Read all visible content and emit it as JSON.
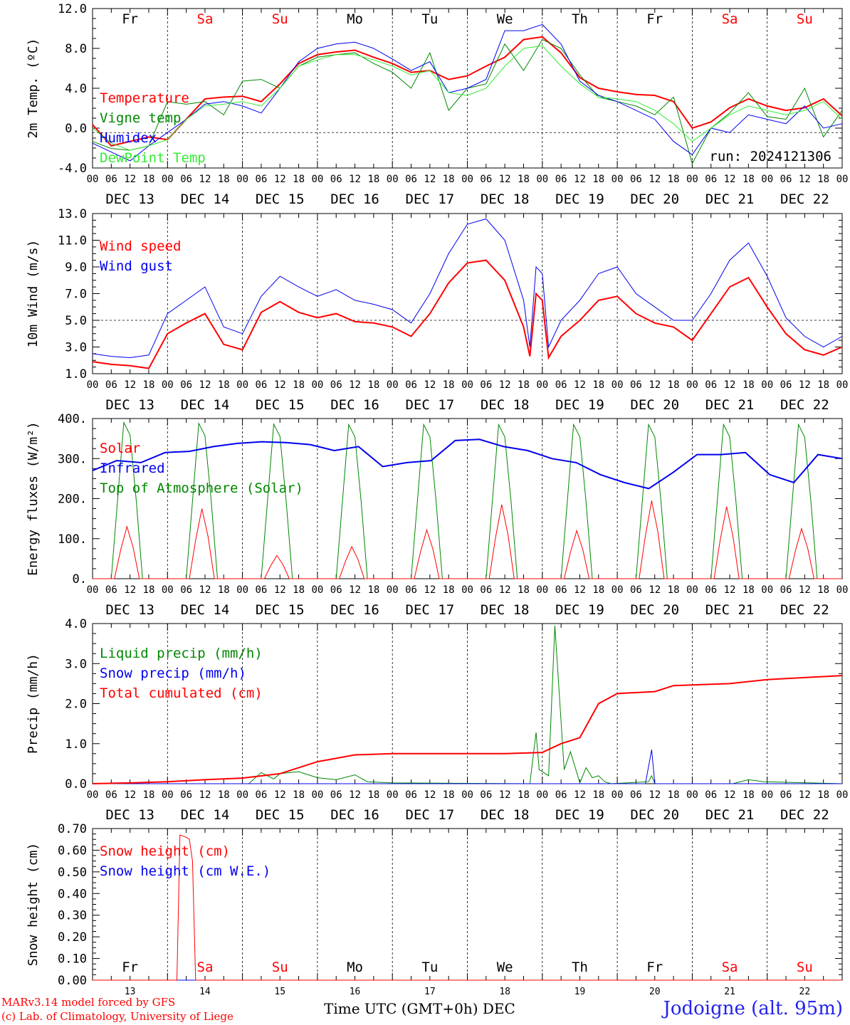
{
  "footer": {
    "credit_line1": "MARv3.14 model forced by GFS",
    "credit_line2": "(c) Lab. of Climatology, University of Liege",
    "x_axis_title": "Time UTC (GMT+0h) DEC",
    "station": "Jodoigne (alt. 95m)"
  },
  "time_axis": {
    "hour_ticks": [
      "00",
      "06",
      "12",
      "18"
    ],
    "final_tick": "00",
    "dates": [
      "DEC 13",
      "DEC 14",
      "DEC 15",
      "DEC 16",
      "DEC 17",
      "DEC 18",
      "DEC 19",
      "DEC 20",
      "DEC 21",
      "DEC 22"
    ],
    "weekdays": [
      "Fr",
      "Sa",
      "Su",
      "Mo",
      "Tu",
      "We",
      "Th",
      "Fr",
      "Sa",
      "Su"
    ],
    "weekday_colors": [
      "#000000",
      "#ff0000",
      "#ff0000",
      "#000000",
      "#000000",
      "#000000",
      "#000000",
      "#000000",
      "#ff0000",
      "#ff0000"
    ],
    "day_numbers": [
      "13",
      "14",
      "15",
      "16",
      "17",
      "18",
      "19",
      "20",
      "21",
      "22"
    ]
  },
  "chart_data": [
    {
      "type": "line",
      "ylabel": "2m Temp. (ºC)",
      "ylim": [
        -4,
        14
      ],
      "yticks": [
        "-4.0",
        "0.0",
        "4.0",
        "8.0",
        "12.0"
      ],
      "reference_line": 0,
      "note": "run: 2024121306",
      "weekday_labels_top": true,
      "x_hours": [
        0,
        6,
        12,
        18,
        24,
        30,
        36,
        42,
        48,
        54,
        60,
        66,
        72,
        78,
        84,
        90,
        96,
        102,
        108,
        114,
        120,
        126,
        132,
        138,
        144,
        150,
        156,
        162,
        168,
        174,
        180,
        186,
        192,
        198,
        204,
        210,
        216,
        222,
        228,
        234,
        240
      ],
      "series": [
        {
          "name": "Temperature",
          "color": "#ff0000",
          "width": 2,
          "values": [
            0.9,
            -1.5,
            -1.0,
            -0.5,
            -0.8,
            1.5,
            3.8,
            4.0,
            4.1,
            3.5,
            5.5,
            7.8,
            8.8,
            9.1,
            9.3,
            8.5,
            7.8,
            6.8,
            7.0,
            6.0,
            6.4,
            7.5,
            8.5,
            10.5,
            10.8,
            9.0,
            6.2,
            5.0,
            4.6,
            4.3,
            4.2,
            3.5,
            0.5,
            1.2,
            2.8,
            3.8,
            3.0,
            2.5,
            2.8,
            3.8,
            1.9
          ]
        },
        {
          "name": "Vigne temp",
          "color": "#008800",
          "width": 1,
          "values": [
            -1.0,
            -1.8,
            -2.0,
            -1.5,
            3.5,
            3.2,
            3.5,
            2.0,
            5.8,
            6.0,
            5.0,
            7.5,
            8.5,
            8.8,
            9.0,
            7.8,
            6.8,
            5.0,
            9.0,
            2.5,
            5.0,
            5.5,
            10.0,
            7.0,
            10.5,
            9.5,
            6.5,
            4.0,
            3.5,
            3.0,
            2.0,
            4.0,
            -3.5,
            0.5,
            2.2,
            4.5,
            1.8,
            1.5,
            5.0,
            -0.5,
            2.5
          ]
        },
        {
          "name": "Humidex",
          "color": "#0000ee",
          "width": 1,
          "values": [
            -1.2,
            -2.2,
            -3.2,
            -1.5,
            0.0,
            1.5,
            3.2,
            3.5,
            3.0,
            2.2,
            5.0,
            8.0,
            9.5,
            10.0,
            10.2,
            9.5,
            8.3,
            7.0,
            8.0,
            4.5,
            5.0,
            6.0,
            11.5,
            11.5,
            12.2,
            10.0,
            5.8,
            4.2,
            3.5,
            2.5,
            1.5,
            -1.0,
            -2.5,
            0.5,
            0.0,
            2.0,
            1.5,
            1.0,
            3.0,
            0.5,
            1.0
          ]
        },
        {
          "name": "DewPoint Temp",
          "color": "#33ee33",
          "width": 1,
          "values": [
            0.5,
            -1.2,
            -2.0,
            -1.5,
            -0.8,
            1.5,
            3.0,
            3.2,
            3.5,
            3.0,
            5.0,
            7.5,
            8.2,
            8.8,
            8.8,
            8.2,
            7.5,
            6.5,
            7.0,
            4.5,
            4.2,
            5.0,
            7.5,
            9.5,
            9.8,
            7.5,
            5.5,
            4.0,
            3.8,
            3.5,
            2.5,
            1.0,
            -1.0,
            0.5,
            2.0,
            3.0,
            2.5,
            2.0,
            2.5,
            3.5,
            1.5
          ]
        }
      ]
    },
    {
      "type": "line",
      "ylabel": "10m Wind (m/s)",
      "ylim": [
        1,
        13
      ],
      "yticks": [
        "1.0",
        "3.0",
        "5.0",
        "7.0",
        "9.0",
        "11.0",
        "13.0"
      ],
      "reference_line": 5,
      "x_hours": [
        0,
        6,
        12,
        18,
        24,
        30,
        36,
        42,
        48,
        54,
        60,
        66,
        72,
        78,
        84,
        90,
        96,
        102,
        108,
        114,
        120,
        126,
        132,
        138,
        140,
        142,
        144,
        146,
        150,
        156,
        162,
        168,
        174,
        180,
        186,
        192,
        198,
        204,
        210,
        216,
        222,
        228,
        234,
        240
      ],
      "series": [
        {
          "name": "Wind speed",
          "color": "#ff0000",
          "width": 2,
          "values": [
            1.9,
            1.7,
            1.6,
            1.4,
            4.0,
            4.8,
            5.5,
            3.2,
            2.8,
            5.6,
            6.4,
            5.6,
            5.2,
            5.5,
            4.9,
            4.8,
            4.5,
            3.8,
            5.5,
            7.8,
            9.3,
            9.5,
            8.0,
            4.5,
            2.3,
            7.0,
            6.5,
            2.2,
            3.8,
            5.0,
            6.5,
            6.8,
            5.5,
            4.8,
            4.5,
            3.5,
            5.5,
            7.5,
            8.2,
            6.0,
            4.0,
            2.8,
            2.4,
            3.0
          ]
        },
        {
          "name": "Wind gust",
          "color": "#0000ee",
          "width": 1,
          "values": [
            2.5,
            2.3,
            2.2,
            2.4,
            5.5,
            6.5,
            7.5,
            4.5,
            4.0,
            6.8,
            8.3,
            7.5,
            6.8,
            7.3,
            6.5,
            6.2,
            5.8,
            4.8,
            7.0,
            10.0,
            12.2,
            12.6,
            11.0,
            6.5,
            3.0,
            9.0,
            8.5,
            3.0,
            5.0,
            6.5,
            8.5,
            9.0,
            7.0,
            6.0,
            5.0,
            5.0,
            7.0,
            9.5,
            10.8,
            8.3,
            5.2,
            3.8,
            3.0,
            3.8
          ]
        }
      ]
    },
    {
      "type": "line",
      "ylabel": "Energy fluxes (W/m²)",
      "ylim": [
        0,
        400
      ],
      "yticks": [
        "0.",
        "100.",
        "200.",
        "300.",
        "400."
      ],
      "solar_peaks": [
        130,
        175,
        58,
        80,
        122,
        185,
        120,
        195,
        180,
        125
      ],
      "toa_peaks": [
        390,
        388,
        386,
        385,
        385,
        385,
        385,
        385,
        385,
        385
      ],
      "infrared": [
        270,
        295,
        290,
        315,
        318,
        330,
        338,
        342,
        340,
        335,
        320,
        330,
        280,
        290,
        295,
        345,
        348,
        330,
        320,
        300,
        290,
        260,
        240,
        225,
        265,
        310,
        310,
        315,
        260,
        240,
        310,
        300
      ],
      "series": [
        {
          "name": "Solar",
          "color": "#ff0000",
          "width": 1
        },
        {
          "name": "Infrared",
          "color": "#0000ee",
          "width": 2
        },
        {
          "name": "Top of Atmosphere (Solar)",
          "color": "#008800",
          "width": 1
        }
      ]
    },
    {
      "type": "line",
      "ylabel": "Precip (mm/h)",
      "ylim": [
        0,
        4
      ],
      "yticks": [
        "0.0",
        "1.0",
        "2.0",
        "3.0",
        "4.0"
      ],
      "x_hours": [
        0,
        12,
        24,
        36,
        42,
        48,
        60,
        72,
        84,
        96,
        108,
        120,
        132,
        144,
        150,
        156,
        162,
        168,
        180,
        186,
        204,
        216,
        228,
        240
      ],
      "series": [
        {
          "name": "Liquid precip (mm/h)",
          "color": "#008800",
          "width": 1
        },
        {
          "name": "Snow precip (mm/h)",
          "color": "#0000ee",
          "width": 1
        },
        {
          "name": "Total cumulated (cm)",
          "color": "#ff0000",
          "width": 2,
          "values": [
            0.0,
            0.02,
            0.05,
            0.1,
            0.12,
            0.14,
            0.25,
            0.55,
            0.72,
            0.75,
            0.75,
            0.75,
            0.75,
            0.78,
            1.0,
            1.15,
            2.0,
            2.25,
            2.3,
            2.45,
            2.5,
            2.6,
            2.65,
            2.7
          ]
        }
      ],
      "liquid_points": [
        [
          0,
          0
        ],
        [
          50,
          0
        ],
        [
          54,
          0.28
        ],
        [
          58,
          0.12
        ],
        [
          60,
          0.25
        ],
        [
          66,
          0.3
        ],
        [
          72,
          0.15
        ],
        [
          78,
          0.1
        ],
        [
          84,
          0.22
        ],
        [
          88,
          0.05
        ],
        [
          96,
          0.02
        ],
        [
          140,
          0
        ],
        [
          142,
          1.28
        ],
        [
          143,
          0.35
        ],
        [
          145,
          0.25
        ],
        [
          146,
          0.2
        ],
        [
          148,
          3.95
        ],
        [
          151,
          0.35
        ],
        [
          153,
          0.8
        ],
        [
          156,
          0.02
        ],
        [
          158,
          0.4
        ],
        [
          160,
          0.15
        ],
        [
          162,
          0.2
        ],
        [
          164,
          0.05
        ],
        [
          166,
          0
        ],
        [
          178,
          0.05
        ],
        [
          179,
          0.2
        ],
        [
          180,
          0
        ],
        [
          205,
          0
        ],
        [
          210,
          0.1
        ],
        [
          215,
          0.05
        ],
        [
          240,
          0
        ]
      ],
      "snow_points": [
        [
          0,
          0
        ],
        [
          177,
          0
        ],
        [
          179,
          0.85
        ],
        [
          180,
          0
        ],
        [
          240,
          0
        ]
      ]
    },
    {
      "type": "line",
      "ylabel": "Snow height (cm)",
      "ylim": [
        0,
        0.7
      ],
      "yticks": [
        "0.00",
        "0.10",
        "0.20",
        "0.30",
        "0.40",
        "0.50",
        "0.60",
        "0.70"
      ],
      "weekday_labels_bottom": true,
      "snow_points": [
        [
          0,
          0
        ],
        [
          27,
          0
        ],
        [
          28,
          0.67
        ],
        [
          30,
          0.66
        ],
        [
          31,
          0.65
        ],
        [
          32,
          0.55
        ],
        [
          33,
          0.0
        ],
        [
          240,
          0
        ]
      ],
      "series": [
        {
          "name": "Snow height (cm)",
          "color": "#ff0000",
          "width": 1
        },
        {
          "name": "Snow height (cm W.E.)",
          "color": "#0000ee",
          "width": 1
        }
      ]
    }
  ]
}
